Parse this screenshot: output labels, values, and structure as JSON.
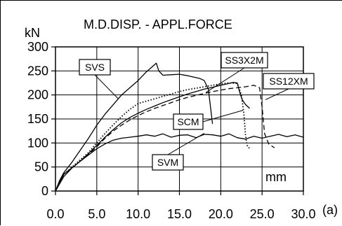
{
  "chart_data": {
    "type": "line",
    "title": "M.D.DISP. - APPL.FORCE",
    "ylabel": "kN",
    "xlabel": "mm",
    "panel_label": "(a)",
    "xlim": [
      0,
      30
    ],
    "ylim": [
      0,
      300
    ],
    "x_ticks": [
      0,
      5,
      10,
      15,
      20,
      25,
      30
    ],
    "x_tick_labels": [
      "0.0",
      "5.0",
      "10.0",
      "15.0",
      "20.0",
      "25.0",
      "30.0"
    ],
    "y_ticks": [
      0,
      50,
      100,
      150,
      200,
      250,
      300
    ],
    "y_tick_labels": [
      "0",
      "50",
      "100",
      "150",
      "200",
      "250",
      "300"
    ],
    "grid": true,
    "series": [
      {
        "name": "SVS",
        "style": "solid",
        "x": [
          0,
          0.5,
          1,
          2,
          3,
          4,
          5,
          6,
          7,
          8,
          9,
          10,
          11,
          11.8,
          12.2,
          12.5,
          13,
          14,
          15,
          16,
          17,
          17.5,
          18,
          18.5,
          19
        ],
        "y": [
          0,
          22,
          38,
          60,
          85,
          110,
          137,
          160,
          180,
          200,
          215,
          230,
          248,
          260,
          266,
          250,
          241,
          242,
          243,
          240,
          236,
          234,
          230,
          212,
          140
        ]
      },
      {
        "name": "SS3X2M",
        "style": "dotted",
        "x": [
          0,
          1,
          2,
          3,
          4,
          5,
          6,
          7,
          8,
          9,
          10,
          11,
          12,
          13,
          14,
          15,
          16,
          17,
          18,
          19,
          20,
          21,
          22,
          22.5,
          22.8,
          23,
          23.2,
          23.5
        ],
        "y": [
          0,
          35,
          50,
          65,
          80,
          100,
          120,
          138,
          155,
          170,
          182,
          187,
          192,
          197,
          202,
          207,
          211,
          214,
          217,
          220,
          223,
          225,
          224,
          200,
          160,
          115,
          95,
          88
        ]
      },
      {
        "name": "SS12XM",
        "style": "dashed",
        "x": [
          0,
          1,
          2,
          3,
          4,
          5,
          6,
          7,
          8,
          9,
          10,
          11,
          12,
          13,
          14,
          15,
          16,
          17,
          18,
          19,
          20,
          21,
          22,
          23,
          24,
          24.7,
          25,
          25.3,
          25.8,
          26.5
        ],
        "y": [
          0,
          35,
          48,
          62,
          76,
          92,
          110,
          125,
          137,
          148,
          157,
          165,
          172,
          178,
          184,
          190,
          195,
          199,
          203,
          207,
          210,
          213,
          215,
          217,
          220,
          215,
          175,
          120,
          98,
          90
        ]
      },
      {
        "name": "SCM",
        "style": "solid",
        "x": [
          0,
          1,
          2,
          3,
          4,
          5,
          6,
          7,
          8,
          9,
          10,
          11,
          12,
          13,
          14,
          15,
          16,
          17,
          18,
          19,
          20,
          21,
          21.5,
          22,
          22.3,
          22.6,
          23,
          23.5
        ],
        "y": [
          0,
          35,
          48,
          62,
          78,
          95,
          112,
          128,
          142,
          153,
          162,
          170,
          177,
          184,
          190,
          196,
          202,
          207,
          212,
          216,
          220,
          224,
          226,
          225,
          205,
          190,
          180,
          172
        ]
      },
      {
        "name": "SVM",
        "style": "solid",
        "x": [
          0,
          1,
          2,
          3,
          4,
          5,
          6,
          7,
          8,
          9,
          10,
          11,
          12,
          13,
          14,
          15,
          16,
          17,
          18,
          19,
          20,
          21,
          22,
          23,
          24,
          25,
          26,
          27,
          28,
          29,
          30
        ],
        "y": [
          0,
          30,
          48,
          62,
          75,
          88,
          98,
          106,
          110,
          112,
          114,
          117,
          114,
          119,
          112,
          116,
          117,
          111,
          118,
          117,
          114,
          119,
          111,
          108,
          114,
          110,
          114,
          118,
          113,
          117,
          112
        ]
      }
    ],
    "tags": [
      {
        "text": "SVS",
        "anchor_x": 7.6,
        "anchor_y": 192
      },
      {
        "text": "SS3X2M",
        "anchor_x": 18.2,
        "anchor_y": 205
      },
      {
        "text": "SS12XM",
        "anchor_x": 25.4,
        "anchor_y": 190
      },
      {
        "text": "SCM",
        "anchor_x": 22.7,
        "anchor_y": 168
      },
      {
        "text": "SVM",
        "anchor_x": 18.0,
        "anchor_y": 120
      }
    ]
  }
}
